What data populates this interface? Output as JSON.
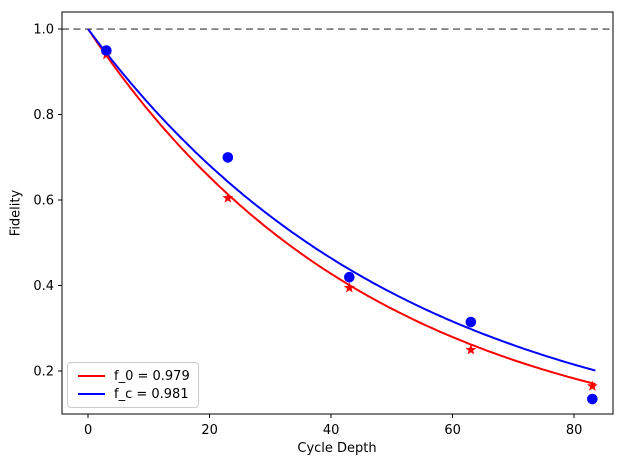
{
  "figure": {
    "background": "#ffffff"
  },
  "chart_data": {
    "type": "line",
    "title": "",
    "xlabel": "Cycle Depth",
    "ylabel": "Fidelity",
    "xlim": [
      -4.3,
      86.4
    ],
    "ylim": [
      0.1,
      1.04
    ],
    "xticks": [
      0,
      20,
      40,
      60,
      80
    ],
    "xticklabels": [
      "0",
      "20",
      "40",
      "60",
      "80"
    ],
    "yticks": [
      0.2,
      0.4,
      0.6,
      0.8,
      1.0
    ],
    "yticklabels": [
      "0.2",
      "0.4",
      "0.6",
      "0.8",
      "1.0"
    ],
    "grid": false,
    "reference_line": {
      "y": 1.0,
      "color": "#7f7f7f",
      "style": "dashed"
    },
    "series": [
      {
        "key": "f0-fit",
        "name": "f_0 exponential fit curve",
        "kind": "exp_curve",
        "color": "#ff0000",
        "decay_per_cycle": 0.979,
        "x_start": 0,
        "x_end": 83.5
      },
      {
        "key": "fc-fit",
        "name": "f_c exponential fit curve",
        "kind": "exp_curve",
        "color": "#0000ff",
        "decay_per_cycle": 0.981,
        "x_start": 0,
        "x_end": 83.5
      },
      {
        "key": "f0-points",
        "name": "f_0 data points (red stars)",
        "kind": "scatter",
        "marker": "star",
        "color": "#ff0000",
        "x": [
          3,
          23,
          43,
          63,
          83
        ],
        "y": [
          0.94,
          0.605,
          0.395,
          0.25,
          0.165
        ]
      },
      {
        "key": "fc-points",
        "name": "f_c data points (blue circles)",
        "kind": "scatter",
        "marker": "circle",
        "color": "#0000ff",
        "x": [
          3,
          23,
          43,
          63,
          83
        ],
        "y": [
          0.95,
          0.7,
          0.42,
          0.315,
          0.135
        ]
      }
    ],
    "legend": {
      "position": "lower left",
      "entries": [
        {
          "key": "f0",
          "label": "f_0 = 0.979",
          "color": "#ff0000"
        },
        {
          "key": "fc",
          "label": "f_c = 0.981",
          "color": "#0000ff"
        }
      ]
    }
  }
}
